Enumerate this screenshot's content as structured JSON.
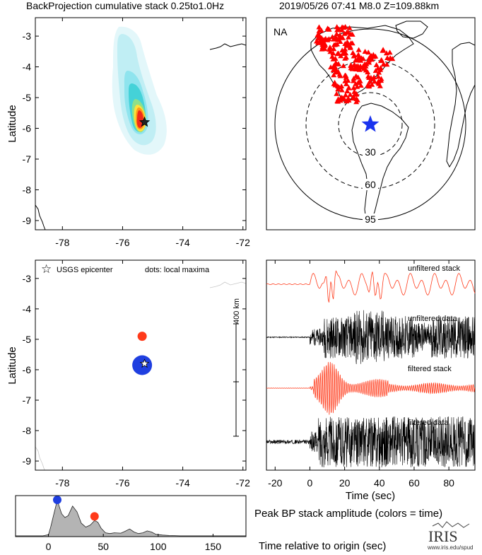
{
  "header": {
    "left_title": "BackProjection cumulative stack 0.25to1.0Hz",
    "right_title": "2019/05/26 07:41  M8.0  Z=109.88km"
  },
  "colors": {
    "red": "#ff3a1a",
    "blue": "#1f3fe0",
    "star_blue": "#1a33ee",
    "station_red": "#ff0000",
    "gray_fill": "#b4b4b4"
  },
  "chart_data": [
    {
      "type": "heatmap",
      "name": "backprojection-map",
      "ylabel": "Latitude",
      "xlim": [
        -78.9,
        -71.9
      ],
      "ylim": [
        -9.3,
        -2.4
      ],
      "xticks": [
        -78,
        -76,
        -74,
        -72
      ],
      "yticks": [
        -3,
        -4,
        -5,
        -6,
        -7,
        -8,
        -9
      ],
      "epicenter": {
        "lon": -75.27,
        "lat": -5.8
      },
      "peak": {
        "lon": -75.2,
        "lat": -5.75
      }
    },
    {
      "type": "map",
      "name": "station-map",
      "network_label": "NA",
      "ring_labels": [
        "30",
        "60",
        "95"
      ]
    },
    {
      "type": "scatter",
      "name": "local-maxima-map",
      "ylabel": "Latitude",
      "xlim": [
        -78.9,
        -71.9
      ],
      "ylim": [
        -9.3,
        -2.4
      ],
      "xticks": [
        -78,
        -76,
        -74,
        -72
      ],
      "yticks": [
        -3,
        -4,
        -5,
        -6,
        -7,
        -8,
        -9
      ],
      "legend_epicenter": "USGS epicenter",
      "legend_dots": "dots: local maxima",
      "scale_label": "400 km",
      "epicenter": {
        "lon": -75.27,
        "lat": -5.8
      },
      "points": [
        {
          "lon": -75.35,
          "lat": -5.85,
          "time": 8,
          "color": "blue"
        },
        {
          "lon": -75.35,
          "lat": -4.9,
          "time": 42,
          "color": "red"
        }
      ]
    },
    {
      "type": "line",
      "name": "waveforms",
      "xlabel": "Time (sec)",
      "xlim": [
        -25,
        95
      ],
      "xticks": [
        -20,
        0,
        20,
        40,
        60,
        80
      ],
      "traces": [
        "unfiltered stack",
        "unfiltered data",
        "filtered stack",
        "filtered data"
      ]
    },
    {
      "type": "area",
      "name": "peak-amplitude",
      "title": "Peak BP stack amplitude (colors = time)",
      "xlabel": "Time relative to origin (sec)",
      "xlim": [
        -30,
        180
      ],
      "xticks": [
        0,
        50,
        100,
        150
      ],
      "x": [
        -30,
        -5,
        0,
        2,
        5,
        8,
        12,
        15,
        18,
        22,
        26,
        30,
        34,
        38,
        42,
        45,
        48,
        52,
        56,
        60,
        66,
        70,
        74,
        78,
        82,
        86,
        90,
        94,
        98,
        104,
        110,
        120,
        180
      ],
      "values": [
        0.02,
        0.02,
        0.05,
        0.25,
        0.6,
        0.95,
        0.6,
        0.5,
        0.55,
        0.8,
        0.65,
        0.35,
        0.25,
        0.3,
        0.42,
        0.38,
        0.22,
        0.1,
        0.08,
        0.1,
        0.09,
        0.14,
        0.2,
        0.12,
        0.08,
        0.1,
        0.15,
        0.12,
        0.06,
        0.04,
        0.03,
        0.02,
        0.02
      ],
      "markers": [
        {
          "time": 8,
          "color": "blue"
        },
        {
          "time": 42,
          "color": "red"
        }
      ]
    }
  ],
  "logo": {
    "text": "IRIS",
    "url_text": "www.iris.edu/spud"
  }
}
